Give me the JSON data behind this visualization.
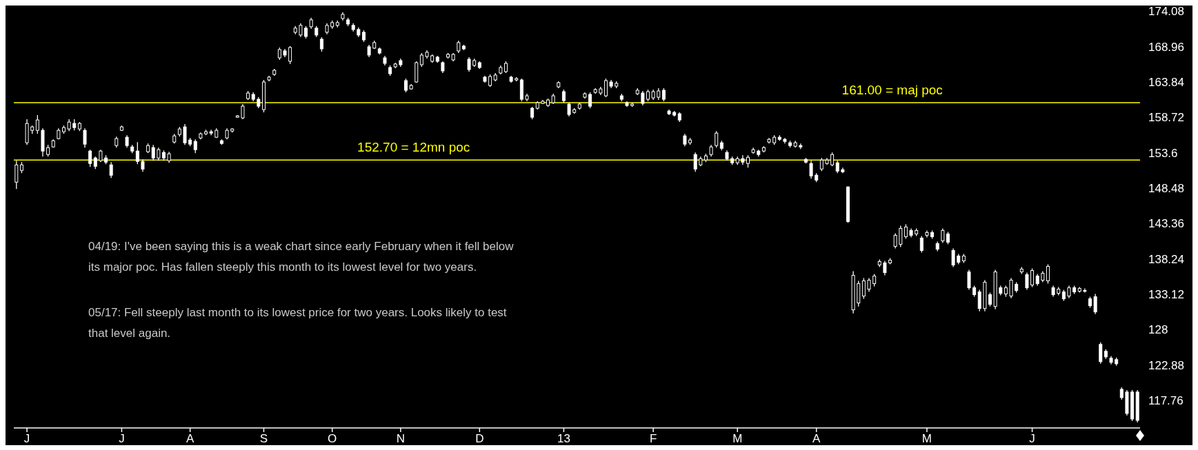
{
  "chart_data": {
    "type": "candlestick",
    "color": "#ffffff",
    "categories": [
      null,
      null,
      "J",
      null,
      null,
      null,
      null,
      null,
      null,
      null,
      null,
      null,
      null,
      null,
      null,
      null,
      null,
      null,
      null,
      null,
      "J",
      null,
      null,
      null,
      null,
      null,
      null,
      null,
      null,
      null,
      null,
      null,
      null,
      "A",
      null,
      null,
      null,
      null,
      null,
      null,
      null,
      null,
      null,
      null,
      null,
      null,
      null,
      "S",
      null,
      null,
      null,
      null,
      null,
      null,
      null,
      null,
      null,
      null,
      null,
      null,
      "O",
      null,
      null,
      null,
      null,
      null,
      null,
      null,
      null,
      null,
      null,
      null,
      null,
      "N",
      null,
      null,
      null,
      null,
      null,
      null,
      null,
      null,
      null,
      null,
      null,
      null,
      null,
      null,
      "D",
      null,
      null,
      null,
      null,
      null,
      null,
      null,
      null,
      null,
      null,
      null,
      null,
      null,
      null,
      null,
      "13",
      null,
      null,
      null,
      null,
      null,
      null,
      null,
      null,
      null,
      null,
      null,
      null,
      null,
      null,
      null,
      null,
      "F",
      null,
      null,
      null,
      null,
      null,
      null,
      null,
      null,
      null,
      null,
      null,
      null,
      null,
      null,
      null,
      "M",
      null,
      null,
      null,
      null,
      null,
      null,
      null,
      null,
      null,
      null,
      null,
      null,
      null,
      null,
      "A",
      null,
      null,
      null,
      null,
      null,
      null,
      null,
      null,
      null,
      null,
      null,
      null,
      null,
      null,
      null,
      null,
      null,
      null,
      null,
      null,
      "M",
      null,
      null,
      null,
      null,
      null,
      null,
      null,
      null,
      null,
      null,
      null,
      null,
      null,
      null,
      null,
      null,
      null,
      null,
      null,
      "J",
      null,
      null,
      null,
      null,
      null,
      null,
      null,
      null,
      null,
      null,
      null,
      null,
      null,
      null,
      null,
      null,
      null,
      null,
      null,
      null
    ],
    "ylim": [
      113.9,
      174.08
    ],
    "yticks": [
      117.76,
      122.88,
      128,
      133.12,
      138.24,
      143.36,
      148.48,
      153.6,
      158.72,
      163.84,
      168.96,
      174.08
    ],
    "ref_lines": [
      {
        "axis": "y",
        "value": 161,
        "label": "161.00 = maj poc",
        "color": "#ffff00"
      },
      {
        "axis": "y",
        "value": 152.7,
        "label": "152.70 = 12mn poc",
        "color": "#ffff00"
      }
    ],
    "annotations": [
      "04/19: I've been saying this is a weak chart since early February when it fell below its major poc. Has fallen steeply this month to its lowest level for two years.",
      "05/17: Fell steeply last month to its lowest price for two years. Looks likely to test that level again."
    ],
    "ohlc": [
      [
        149.5,
        152.6,
        148.5,
        152.0
      ],
      [
        151.2,
        152.4,
        150.8,
        152.0
      ],
      [
        155.2,
        158.6,
        154.9,
        158.0
      ],
      [
        157.0,
        157.7,
        156.5,
        157.5
      ],
      [
        157.0,
        159.2,
        156.5,
        158.5
      ],
      [
        157.0,
        157.3,
        153.2,
        154.0
      ],
      [
        153.5,
        154.9,
        153.2,
        154.5
      ],
      [
        154.6,
        155.7,
        154.5,
        155.5
      ],
      [
        155.8,
        157.3,
        155.7,
        157.0
      ],
      [
        156.8,
        157.7,
        156.5,
        157.4
      ],
      [
        157.2,
        158.6,
        156.9,
        158.2
      ],
      [
        158.0,
        158.6,
        157.0,
        157.4
      ],
      [
        157.2,
        158.2,
        156.9,
        158.0
      ],
      [
        157.0,
        157.3,
        154.5,
        155.0
      ],
      [
        154.0,
        154.2,
        151.7,
        152.2
      ],
      [
        153.0,
        153.2,
        151.4,
        151.8
      ],
      [
        152.6,
        154.2,
        152.4,
        154.0
      ],
      [
        153.0,
        153.4,
        152.1,
        152.4
      ],
      [
        152.0,
        152.4,
        150.1,
        150.5
      ],
      [
        154.8,
        156.1,
        154.5,
        155.8
      ],
      [
        157.0,
        157.7,
        156.9,
        157.5
      ],
      [
        156.0,
        156.3,
        154.5,
        154.8
      ],
      [
        154.6,
        154.9,
        153.7,
        154.0
      ],
      [
        154.0,
        155.3,
        152.1,
        152.5
      ],
      [
        152.5,
        152.8,
        151.0,
        151.4
      ],
      [
        153.9,
        155.1,
        153.7,
        154.8
      ],
      [
        154.5,
        154.9,
        152.6,
        153.0
      ],
      [
        153.0,
        154.5,
        152.6,
        154.2
      ],
      [
        153.8,
        154.1,
        152.6,
        153.0
      ],
      [
        152.6,
        153.9,
        152.3,
        153.6
      ],
      [
        155.3,
        156.5,
        155.1,
        156.2
      ],
      [
        156.4,
        157.5,
        156.1,
        157.2
      ],
      [
        157.5,
        157.9,
        154.9,
        155.2
      ],
      [
        155.6,
        155.9,
        154.7,
        155.0
      ],
      [
        155.4,
        155.7,
        153.7,
        154.2
      ],
      [
        155.9,
        156.7,
        155.7,
        156.5
      ],
      [
        156.5,
        157.1,
        156.3,
        156.8
      ],
      [
        156.8,
        157.1,
        156.3,
        156.6
      ],
      [
        156.0,
        157.3,
        155.9,
        157.0
      ],
      [
        155.5,
        155.7,
        154.9,
        155.1
      ],
      [
        155.9,
        157.3,
        155.7,
        157.0
      ],
      [
        156.9,
        157.3,
        156.7,
        157.2
      ],
      [
        158.9,
        159.2,
        158.8,
        159.1
      ],
      [
        158.8,
        160.8,
        158.6,
        160.5
      ],
      [
        161.6,
        162.7,
        161.4,
        162.4
      ],
      [
        162.2,
        162.5,
        161.2,
        161.5
      ],
      [
        161.5,
        161.8,
        160.2,
        160.5
      ],
      [
        160.0,
        164.3,
        159.6,
        164.0
      ],
      [
        164.3,
        164.9,
        164.1,
        164.7
      ],
      [
        165.1,
        165.9,
        164.9,
        165.7
      ],
      [
        167.5,
        169.0,
        167.2,
        168.7
      ],
      [
        168.5,
        168.8,
        167.6,
        167.9
      ],
      [
        167.0,
        169.2,
        166.6,
        169.0
      ],
      [
        171.2,
        172.1,
        170.9,
        171.8
      ],
      [
        170.8,
        172.5,
        170.5,
        172.2
      ],
      [
        171.8,
        172.1,
        170.3,
        170.6
      ],
      [
        172.0,
        173.3,
        171.7,
        173.0
      ],
      [
        171.8,
        172.1,
        170.5,
        170.8
      ],
      [
        170.2,
        170.5,
        168.4,
        168.8
      ],
      [
        171.2,
        172.5,
        170.9,
        172.2
      ],
      [
        172.0,
        172.9,
        171.7,
        172.6
      ],
      [
        172.2,
        172.9,
        171.9,
        172.6
      ],
      [
        173.2,
        174.1,
        172.9,
        173.8
      ],
      [
        173.0,
        173.3,
        172.1,
        172.4
      ],
      [
        172.2,
        172.5,
        171.3,
        171.6
      ],
      [
        171.6,
        171.9,
        170.5,
        170.8
      ],
      [
        171.2,
        171.5,
        169.8,
        170.1
      ],
      [
        169.1,
        169.4,
        167.6,
        167.9
      ],
      [
        168.9,
        170.0,
        168.8,
        169.7
      ],
      [
        168.8,
        169.0,
        168.0,
        168.2
      ],
      [
        167.5,
        167.8,
        166.4,
        166.7
      ],
      [
        166.1,
        166.4,
        164.9,
        165.2
      ],
      [
        166.2,
        166.8,
        166.0,
        166.6
      ],
      [
        167.1,
        167.4,
        166.2,
        166.5
      ],
      [
        164.2,
        164.5,
        162.5,
        162.8
      ],
      [
        163.0,
        163.7,
        162.9,
        163.5
      ],
      [
        164.0,
        167.0,
        163.9,
        166.8
      ],
      [
        166.5,
        168.2,
        166.2,
        167.9
      ],
      [
        167.7,
        168.6,
        167.4,
        168.3
      ],
      [
        167.0,
        168.0,
        166.8,
        167.8
      ],
      [
        167.6,
        167.8,
        166.8,
        167.0
      ],
      [
        166.8,
        167.0,
        165.3,
        165.6
      ],
      [
        167.6,
        168.2,
        167.4,
        168.0
      ],
      [
        167.2,
        168.2,
        167.0,
        168.0
      ],
      [
        168.5,
        170.0,
        168.2,
        169.7
      ],
      [
        169.2,
        169.4,
        168.6,
        168.8
      ],
      [
        167.3,
        167.6,
        165.5,
        165.8
      ],
      [
        166.4,
        167.4,
        166.2,
        167.1
      ],
      [
        166.8,
        167.0,
        165.9,
        166.1
      ],
      [
        164.7,
        164.9,
        163.9,
        164.1
      ],
      [
        163.5,
        165.1,
        163.3,
        164.8
      ],
      [
        164.3,
        165.3,
        164.1,
        165.0
      ],
      [
        165.3,
        166.4,
        165.1,
        166.1
      ],
      [
        165.5,
        167.0,
        165.3,
        166.7
      ],
      [
        164.7,
        164.9,
        163.9,
        164.1
      ],
      [
        164.3,
        164.7,
        164.1,
        164.5
      ],
      [
        164.3,
        164.5,
        161.2,
        161.5
      ],
      [
        161.5,
        162.3,
        161.2,
        162.0
      ],
      [
        160.2,
        160.4,
        158.6,
        158.9
      ],
      [
        160.2,
        161.2,
        160.0,
        161.0
      ],
      [
        160.9,
        161.4,
        160.8,
        161.2
      ],
      [
        160.6,
        161.6,
        160.4,
        161.4
      ],
      [
        161.0,
        162.3,
        160.8,
        162.0
      ],
      [
        163.3,
        164.1,
        163.1,
        163.9
      ],
      [
        162.6,
        162.9,
        161.0,
        161.3
      ],
      [
        160.8,
        161.0,
        159.0,
        159.3
      ],
      [
        159.6,
        160.2,
        159.4,
        160.0
      ],
      [
        160.2,
        161.0,
        160.0,
        160.8
      ],
      [
        161.8,
        162.5,
        161.6,
        162.3
      ],
      [
        162.2,
        162.5,
        160.2,
        160.5
      ],
      [
        162.5,
        163.1,
        162.3,
        162.9
      ],
      [
        162.4,
        163.3,
        162.1,
        163.0
      ],
      [
        162.0,
        164.5,
        161.8,
        164.2
      ],
      [
        164.0,
        164.3,
        163.1,
        163.4
      ],
      [
        163.4,
        164.1,
        163.1,
        163.8
      ],
      [
        162.0,
        162.3,
        161.2,
        161.5
      ],
      [
        161.0,
        161.2,
        160.4,
        160.6
      ],
      [
        160.6,
        161.0,
        160.4,
        160.8
      ],
      [
        162.3,
        163.1,
        162.1,
        162.8
      ],
      [
        162.4,
        162.7,
        160.6,
        160.9
      ],
      [
        161.5,
        162.9,
        161.2,
        162.6
      ],
      [
        161.7,
        162.9,
        161.4,
        162.6
      ],
      [
        161.8,
        163.1,
        161.4,
        162.7
      ],
      [
        162.8,
        163.1,
        161.2,
        161.5
      ],
      [
        159.8,
        160.0,
        159.2,
        159.4
      ],
      [
        159.6,
        159.8,
        159.0,
        159.2
      ],
      [
        159.4,
        159.6,
        158.2,
        158.5
      ],
      [
        156.2,
        156.5,
        154.7,
        155.0
      ],
      [
        155.2,
        155.9,
        154.9,
        155.6
      ],
      [
        153.5,
        153.8,
        151.0,
        151.4
      ],
      [
        152.0,
        153.2,
        151.8,
        152.9
      ],
      [
        152.7,
        153.6,
        152.4,
        153.3
      ],
      [
        153.5,
        154.9,
        153.2,
        154.6
      ],
      [
        154.8,
        156.9,
        154.5,
        156.6
      ],
      [
        155.2,
        155.5,
        154.1,
        154.4
      ],
      [
        153.8,
        154.1,
        152.6,
        152.9
      ],
      [
        152.9,
        153.2,
        152.0,
        152.3
      ],
      [
        152.3,
        153.2,
        152.0,
        152.9
      ],
      [
        152.9,
        153.4,
        152.0,
        152.4
      ],
      [
        152.2,
        153.4,
        151.6,
        153.1
      ],
      [
        153.8,
        154.5,
        153.6,
        154.2
      ],
      [
        154.0,
        154.2,
        153.2,
        153.5
      ],
      [
        154.0,
        154.7,
        153.8,
        154.5
      ],
      [
        155.3,
        155.9,
        155.1,
        155.7
      ],
      [
        155.2,
        156.3,
        154.9,
        156.0
      ],
      [
        156.0,
        156.3,
        155.5,
        155.7
      ],
      [
        155.7,
        155.9,
        155.1,
        155.4
      ],
      [
        155.2,
        155.5,
        154.5,
        154.8
      ],
      [
        154.7,
        155.5,
        154.5,
        155.2
      ],
      [
        154.8,
        155.1,
        154.3,
        154.6
      ],
      [
        152.8,
        153.0,
        152.2,
        152.4
      ],
      [
        152.2,
        152.6,
        150.0,
        150.4
      ],
      [
        150.5,
        150.8,
        149.5,
        149.8
      ],
      [
        151.4,
        153.0,
        151.1,
        152.7
      ],
      [
        152.2,
        153.0,
        152.0,
        152.7
      ],
      [
        152.0,
        153.8,
        151.8,
        153.5
      ],
      [
        152.3,
        152.6,
        150.8,
        151.1
      ],
      [
        151.3,
        151.6,
        150.8,
        151.0
      ],
      [
        148.8,
        148.9,
        143.6,
        143.8
      ],
      [
        131.0,
        136.6,
        130.5,
        136.0
      ],
      [
        132.0,
        135.2,
        131.5,
        134.8
      ],
      [
        133.0,
        135.6,
        132.6,
        135.2
      ],
      [
        134.0,
        135.6,
        133.6,
        135.3
      ],
      [
        134.8,
        136.2,
        134.4,
        135.9
      ],
      [
        137.5,
        138.3,
        137.2,
        138.0
      ],
      [
        137.8,
        138.1,
        136.0,
        136.4
      ],
      [
        137.8,
        138.5,
        137.6,
        138.2
      ],
      [
        140.2,
        142.1,
        139.9,
        141.8
      ],
      [
        140.5,
        143.2,
        140.1,
        142.8
      ],
      [
        141.6,
        143.4,
        141.3,
        143.0
      ],
      [
        142.5,
        142.8,
        141.5,
        141.8
      ],
      [
        142.0,
        142.8,
        141.7,
        142.5
      ],
      [
        141.4,
        141.7,
        139.3,
        139.6
      ],
      [
        141.8,
        142.5,
        141.5,
        142.2
      ],
      [
        142.2,
        142.5,
        141.3,
        141.6
      ],
      [
        140.6,
        140.9,
        139.5,
        139.8
      ],
      [
        141.0,
        142.8,
        140.7,
        142.5
      ],
      [
        142.0,
        142.3,
        140.5,
        140.8
      ],
      [
        139.6,
        139.9,
        137.2,
        137.5
      ],
      [
        138.8,
        139.1,
        137.6,
        137.9
      ],
      [
        138.1,
        139.1,
        137.8,
        138.8
      ],
      [
        136.5,
        136.8,
        133.9,
        134.2
      ],
      [
        134.2,
        134.5,
        132.9,
        133.2
      ],
      [
        133.6,
        133.9,
        130.8,
        131.2
      ],
      [
        131.2,
        135.3,
        130.8,
        135.0
      ],
      [
        133.2,
        133.5,
        131.5,
        131.8
      ],
      [
        131.5,
        136.8,
        131.1,
        136.5
      ],
      [
        134.2,
        134.5,
        133.1,
        133.4
      ],
      [
        133.3,
        134.5,
        132.9,
        134.2
      ],
      [
        133.0,
        135.6,
        132.7,
        135.3
      ],
      [
        134.7,
        135.0,
        133.5,
        133.8
      ],
      [
        136.5,
        137.2,
        136.2,
        136.9
      ],
      [
        136.1,
        136.4,
        133.9,
        134.2
      ],
      [
        134.6,
        137.0,
        134.3,
        136.7
      ],
      [
        135.9,
        136.2,
        134.5,
        134.8
      ],
      [
        135.3,
        136.6,
        135.0,
        136.3
      ],
      [
        135.2,
        137.6,
        134.8,
        137.3
      ],
      [
        134.2,
        134.5,
        132.9,
        133.2
      ],
      [
        133.4,
        134.3,
        133.1,
        134.0
      ],
      [
        133.6,
        133.9,
        132.3,
        132.6
      ],
      [
        133.0,
        134.5,
        132.7,
        134.2
      ],
      [
        134.2,
        134.5,
        133.3,
        133.6
      ],
      [
        133.7,
        134.3,
        133.5,
        134.1
      ],
      [
        133.8,
        134.1,
        133.5,
        133.7
      ],
      [
        132.6,
        132.9,
        131.3,
        131.6
      ],
      [
        132.9,
        133.3,
        130.4,
        130.7
      ],
      [
        126.0,
        126.3,
        123.2,
        123.5
      ],
      [
        125.0,
        125.3,
        123.9,
        124.2
      ],
      [
        124.0,
        124.3,
        123.1,
        123.4
      ],
      [
        123.8,
        124.1,
        122.9,
        123.2
      ],
      [
        119.5,
        119.8,
        118.0,
        118.3
      ],
      [
        119.1,
        119.4,
        115.7,
        116.0
      ],
      [
        119.1,
        119.4,
        114.9,
        115.2
      ],
      [
        119.1,
        119.4,
        114.7,
        115.0
      ]
    ]
  }
}
